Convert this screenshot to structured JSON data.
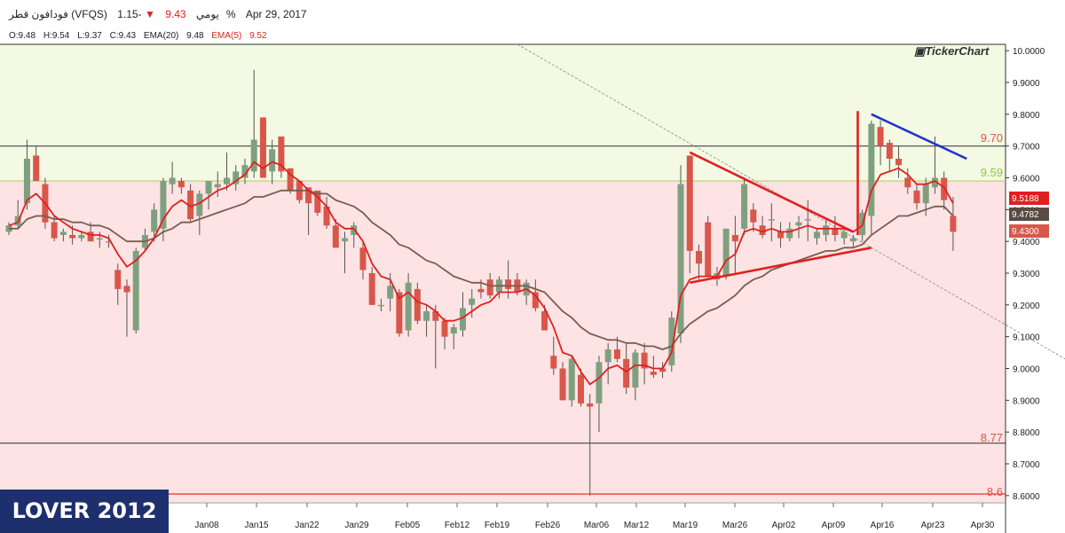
{
  "header": {
    "symbol_name": "فودافون قطر (VFQS)",
    "period": "يومي",
    "last_price": "9.43",
    "change_icon": "down-triangle-icon",
    "change_pct": "-1.15%",
    "date": "Apr 29, 2017"
  },
  "ohlc": {
    "open": "O:9.48",
    "high": "H:9.54",
    "low": "L:9.37",
    "close": "C:9.43",
    "ema20_label": "EMA(20)",
    "ema20_value": "9.48",
    "ema5_label": "EMA(5)",
    "ema5_value": "9.52"
  },
  "logo": "TickerChart",
  "watermark": "LOVER 2012",
  "colors": {
    "up": "#7fa07f",
    "down": "#d9564a",
    "ema5": "#e02020",
    "ema20": "#7a5c50",
    "zone_upper": "#f3f9e2",
    "zone_lower": "#fde3e3",
    "trend_blue": "#2233cc"
  },
  "chart_data": {
    "type": "candlestick",
    "ylim": [
      8.58,
      10.02
    ],
    "y_ticks": [
      "10.0000",
      "9.9000",
      "9.8000",
      "9.7000",
      "9.6000",
      "9.5000",
      "9.4000",
      "9.3000",
      "9.2000",
      "9.1000",
      "9.0000",
      "8.9000",
      "8.8000",
      "8.7000",
      "8.6000"
    ],
    "x_ticks": [
      "Jan08",
      "Jan15",
      "Jan22",
      "Jan29",
      "Feb05",
      "Feb12",
      "Feb19",
      "Feb26",
      "Mar06",
      "Mar12",
      "Mar19",
      "Mar26",
      "Apr02",
      "Apr09",
      "Apr16",
      "Apr23",
      "Apr30"
    ],
    "price_labels": [
      {
        "text": "9.5188",
        "value": 9.5188,
        "color": "#e02020"
      },
      {
        "text": "9.4782",
        "value": 9.4782,
        "color": "#5a4a44"
      },
      {
        "text": "9.4300",
        "value": 9.43,
        "color": "#d9564a"
      }
    ],
    "horizontal_levels": [
      {
        "label": "9.70",
        "value": 9.7,
        "color": "#444444",
        "label_color": "#d9564a"
      },
      {
        "label": "9.59",
        "value": 9.59,
        "color": "#b5d36b",
        "label_color": "#8dc63f"
      },
      {
        "label": "8.77",
        "value": 8.765,
        "color": "#444444",
        "label_color": "#d9564a"
      },
      {
        "label": "8.6",
        "value": 8.605,
        "color": "#e02020",
        "label_color": "#d9564a"
      }
    ],
    "candles": [
      [
        9.43,
        9.46,
        9.42,
        9.45
      ],
      [
        9.45,
        9.53,
        9.44,
        9.48
      ],
      [
        9.52,
        9.72,
        9.5,
        9.66
      ],
      [
        9.67,
        9.7,
        9.59,
        9.59
      ],
      [
        9.58,
        9.6,
        9.44,
        9.46
      ],
      [
        9.46,
        9.48,
        9.4,
        9.41
      ],
      [
        9.42,
        9.44,
        9.4,
        9.43
      ],
      [
        9.42,
        9.45,
        9.39,
        9.41
      ],
      [
        9.41,
        9.43,
        9.4,
        9.42
      ],
      [
        9.43,
        9.46,
        9.4,
        9.4
      ],
      [
        9.41,
        9.43,
        9.38,
        9.41
      ],
      [
        9.4,
        9.42,
        9.38,
        9.4
      ],
      [
        9.31,
        9.33,
        9.2,
        9.25
      ],
      [
        9.26,
        9.28,
        9.1,
        9.24
      ],
      [
        9.12,
        9.38,
        9.11,
        9.37
      ],
      [
        9.38,
        9.44,
        9.37,
        9.42
      ],
      [
        9.43,
        9.52,
        9.4,
        9.5
      ],
      [
        9.44,
        9.6,
        9.4,
        9.59
      ],
      [
        9.58,
        9.65,
        9.55,
        9.6
      ],
      [
        9.59,
        9.6,
        9.55,
        9.57
      ],
      [
        9.56,
        9.58,
        9.46,
        9.47
      ],
      [
        9.48,
        9.56,
        9.42,
        9.55
      ],
      [
        9.55,
        9.59,
        9.5,
        9.59
      ],
      [
        9.57,
        9.62,
        9.54,
        9.58
      ],
      [
        9.58,
        9.68,
        9.56,
        9.6
      ],
      [
        9.58,
        9.64,
        9.56,
        9.62
      ],
      [
        9.6,
        9.66,
        9.58,
        9.64
      ],
      [
        9.62,
        9.94,
        9.6,
        9.72
      ],
      [
        9.79,
        9.79,
        9.6,
        9.6
      ],
      [
        9.62,
        9.72,
        9.58,
        9.69
      ],
      [
        9.73,
        9.73,
        9.6,
        9.62
      ],
      [
        9.63,
        9.63,
        9.55,
        9.56
      ],
      [
        9.59,
        9.59,
        9.52,
        9.53
      ],
      [
        9.57,
        9.57,
        9.42,
        9.52
      ],
      [
        9.56,
        9.56,
        9.48,
        9.49
      ],
      [
        9.51,
        9.54,
        9.44,
        9.45
      ],
      [
        9.45,
        9.47,
        9.38,
        9.38
      ],
      [
        9.4,
        9.43,
        9.3,
        9.41
      ],
      [
        9.42,
        9.46,
        9.38,
        9.45
      ],
      [
        9.38,
        9.4,
        9.28,
        9.31
      ],
      [
        9.3,
        9.32,
        9.2,
        9.2
      ],
      [
        9.2,
        9.22,
        9.18,
        9.2
      ],
      [
        9.22,
        9.3,
        9.18,
        9.26
      ],
      [
        9.24,
        9.25,
        9.1,
        9.11
      ],
      [
        9.12,
        9.3,
        9.1,
        9.27
      ],
      [
        9.25,
        9.27,
        9.14,
        9.15
      ],
      [
        9.15,
        9.2,
        9.1,
        9.18
      ],
      [
        9.18,
        9.2,
        9.0,
        9.15
      ],
      [
        9.15,
        9.16,
        9.06,
        9.1
      ],
      [
        9.11,
        9.14,
        9.06,
        9.13
      ],
      [
        9.12,
        9.24,
        9.1,
        9.19
      ],
      [
        9.2,
        9.25,
        9.16,
        9.22
      ],
      [
        9.25,
        9.28,
        9.22,
        9.24
      ],
      [
        9.28,
        9.3,
        9.22,
        9.23
      ],
      [
        9.24,
        9.29,
        9.22,
        9.28
      ],
      [
        9.28,
        9.34,
        9.22,
        9.25
      ],
      [
        9.28,
        9.3,
        9.23,
        9.24
      ],
      [
        9.23,
        9.28,
        9.2,
        9.27
      ],
      [
        9.24,
        9.28,
        9.18,
        9.19
      ],
      [
        9.18,
        9.2,
        9.12,
        9.12
      ],
      [
        9.04,
        9.1,
        8.98,
        9.0
      ],
      [
        9.0,
        9.02,
        8.9,
        8.9
      ],
      [
        8.9,
        9.04,
        8.88,
        9.03
      ],
      [
        8.98,
        9.0,
        8.88,
        8.89
      ],
      [
        8.89,
        8.92,
        8.6,
        8.88
      ],
      [
        8.89,
        9.04,
        8.8,
        9.02
      ],
      [
        9.02,
        9.08,
        8.95,
        9.06
      ],
      [
        9.06,
        9.1,
        9.02,
        9.03
      ],
      [
        9.03,
        9.08,
        8.92,
        8.94
      ],
      [
        8.94,
        9.06,
        8.9,
        9.05
      ],
      [
        9.05,
        9.08,
        8.95,
        9.0
      ],
      [
        8.99,
        9.04,
        8.97,
        8.98
      ],
      [
        9.0,
        9.02,
        8.97,
        8.99
      ],
      [
        9.01,
        9.18,
        8.99,
        9.16
      ],
      [
        9.11,
        9.64,
        9.08,
        9.58
      ],
      [
        9.67,
        9.67,
        9.3,
        9.37
      ],
      [
        9.37,
        9.39,
        9.28,
        9.33
      ],
      [
        9.46,
        9.48,
        9.29,
        9.29
      ],
      [
        9.28,
        9.32,
        9.26,
        9.3
      ],
      [
        9.29,
        9.44,
        9.28,
        9.44
      ],
      [
        9.42,
        9.48,
        9.3,
        9.4
      ],
      [
        9.44,
        9.6,
        9.42,
        9.58
      ],
      [
        9.5,
        9.52,
        9.43,
        9.46
      ],
      [
        9.45,
        9.48,
        9.41,
        9.42
      ],
      [
        9.47,
        9.52,
        9.4,
        9.47
      ],
      [
        9.43,
        9.46,
        9.38,
        9.41
      ],
      [
        9.41,
        9.46,
        9.4,
        9.44
      ],
      [
        9.45,
        9.48,
        9.41,
        9.46
      ],
      [
        9.47,
        9.53,
        9.4,
        9.47
      ],
      [
        9.41,
        9.44,
        9.39,
        9.43
      ],
      [
        9.42,
        9.47,
        9.4,
        9.45
      ],
      [
        9.44,
        9.48,
        9.4,
        9.42
      ],
      [
        9.41,
        9.44,
        9.39,
        9.43
      ],
      [
        9.4,
        9.42,
        9.38,
        9.41
      ],
      [
        9.42,
        9.5,
        9.4,
        9.49
      ],
      [
        9.48,
        9.78,
        9.42,
        9.77
      ],
      [
        9.76,
        9.78,
        9.64,
        9.7
      ],
      [
        9.71,
        9.72,
        9.62,
        9.66
      ],
      [
        9.66,
        9.7,
        9.6,
        9.64
      ],
      [
        9.6,
        9.63,
        9.55,
        9.57
      ],
      [
        9.56,
        9.58,
        9.5,
        9.52
      ],
      [
        9.52,
        9.6,
        9.48,
        9.58
      ],
      [
        9.57,
        9.73,
        9.55,
        9.6
      ],
      [
        9.6,
        9.62,
        9.5,
        9.53
      ],
      [
        9.48,
        9.54,
        9.37,
        9.43
      ]
    ],
    "ema5": [
      9.45,
      9.46,
      9.53,
      9.55,
      9.52,
      9.48,
      9.46,
      9.44,
      9.43,
      9.42,
      9.42,
      9.41,
      9.36,
      9.32,
      9.34,
      9.37,
      9.41,
      9.47,
      9.51,
      9.53,
      9.51,
      9.52,
      9.54,
      9.56,
      9.57,
      9.59,
      9.61,
      9.65,
      9.63,
      9.65,
      9.64,
      9.61,
      9.59,
      9.56,
      9.54,
      9.51,
      9.46,
      9.44,
      9.44,
      9.4,
      9.33,
      9.29,
      9.28,
      9.22,
      9.24,
      9.21,
      9.2,
      9.18,
      9.15,
      9.15,
      9.16,
      9.18,
      9.2,
      9.21,
      9.24,
      9.24,
      9.24,
      9.25,
      9.23,
      9.19,
      9.13,
      9.05,
      9.04,
      8.99,
      8.95,
      8.97,
      9.0,
      9.01,
      8.99,
      9.01,
      9.01,
      9.0,
      9.0,
      9.05,
      9.23,
      9.28,
      9.29,
      9.29,
      9.29,
      9.34,
      9.36,
      9.43,
      9.44,
      9.43,
      9.44,
      9.43,
      9.43,
      9.44,
      9.45,
      9.44,
      9.44,
      9.44,
      9.44,
      9.43,
      9.45,
      9.56,
      9.61,
      9.62,
      9.63,
      9.61,
      9.58,
      9.58,
      9.59,
      9.57,
      9.52
    ],
    "ema20": [
      9.44,
      9.44,
      9.47,
      9.48,
      9.48,
      9.47,
      9.47,
      9.46,
      9.46,
      9.45,
      9.45,
      9.44,
      9.42,
      9.4,
      9.4,
      9.4,
      9.41,
      9.43,
      9.44,
      9.46,
      9.46,
      9.47,
      9.48,
      9.49,
      9.5,
      9.51,
      9.52,
      9.54,
      9.54,
      9.55,
      9.56,
      9.56,
      9.56,
      9.56,
      9.55,
      9.55,
      9.53,
      9.52,
      9.51,
      9.49,
      9.46,
      9.44,
      9.42,
      9.39,
      9.38,
      9.36,
      9.34,
      9.33,
      9.31,
      9.29,
      9.28,
      9.27,
      9.27,
      9.26,
      9.26,
      9.26,
      9.26,
      9.26,
      9.25,
      9.24,
      9.21,
      9.18,
      9.16,
      9.13,
      9.11,
      9.1,
      9.09,
      9.09,
      9.08,
      9.08,
      9.07,
      9.07,
      9.06,
      9.07,
      9.11,
      9.14,
      9.16,
      9.18,
      9.19,
      9.21,
      9.23,
      9.26,
      9.28,
      9.29,
      9.31,
      9.32,
      9.33,
      9.34,
      9.35,
      9.36,
      9.37,
      9.37,
      9.38,
      9.38,
      9.39,
      9.42,
      9.44,
      9.46,
      9.48,
      9.48,
      9.49,
      9.5,
      9.51,
      9.51,
      9.48
    ],
    "trendlines": [
      {
        "name": "long-downtrend-line",
        "color": "#888888",
        "dashed": true,
        "from": [
          56,
          10.02
        ],
        "to": [
          120,
          8.97
        ]
      },
      {
        "name": "triangle-upper-line",
        "color": "#e02020",
        "dashed": false,
        "from": [
          75,
          9.68
        ],
        "to": [
          93,
          9.43
        ]
      },
      {
        "name": "triangle-lower-line",
        "color": "#e02020",
        "dashed": false,
        "from": [
          75,
          9.27
        ],
        "to": [
          95,
          9.38
        ]
      },
      {
        "name": "breakout-vertical-line",
        "color": "#e02020",
        "dashed": false,
        "from": [
          93.5,
          9.81
        ],
        "to": [
          93.5,
          9.42
        ]
      },
      {
        "name": "resistance-blue-line",
        "color": "#2233cc",
        "dashed": false,
        "from": [
          95,
          9.8
        ],
        "to": [
          105.5,
          9.66
        ]
      }
    ]
  }
}
